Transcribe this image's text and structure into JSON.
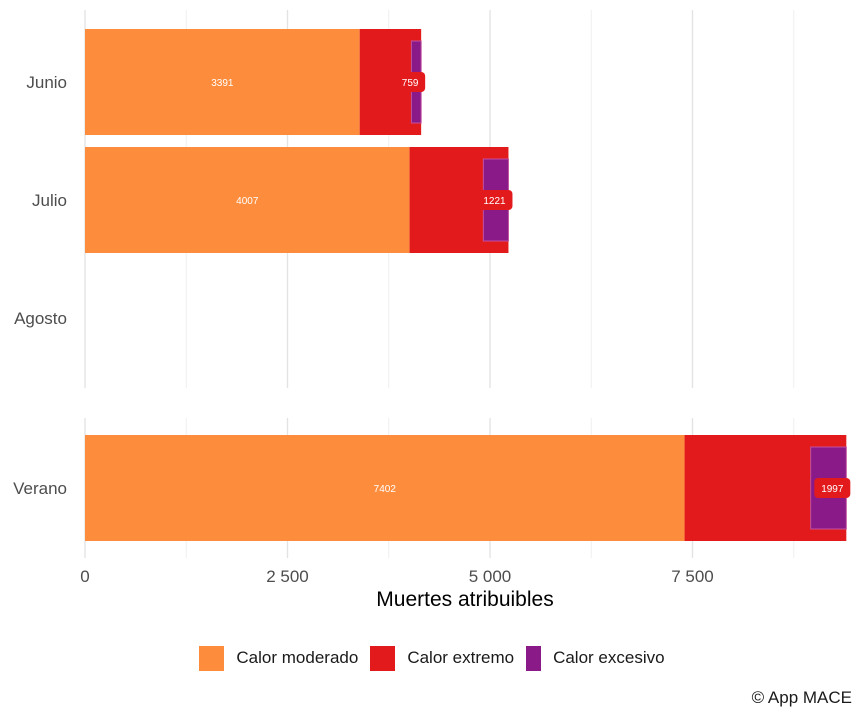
{
  "chart_data": {
    "type": "bar",
    "orientation": "horizontal",
    "stacked": true,
    "title": "",
    "xlabel": "Muertes atribuibles",
    "ylabel": "",
    "xlim": [
      0,
      9400
    ],
    "x_ticks": [
      0,
      2500,
      5000,
      7500
    ],
    "x_tick_labels": [
      "0",
      "2 500",
      "5 000",
      "7 500"
    ],
    "grid": true,
    "legend_position": "bottom",
    "panels": [
      {
        "name": "months",
        "categories": [
          "Junio",
          "Julio",
          "Agosto"
        ]
      },
      {
        "name": "summer",
        "categories": [
          "Verano"
        ]
      }
    ],
    "categories": [
      "Junio",
      "Julio",
      "Agosto",
      "Verano"
    ],
    "series": [
      {
        "name": "Calor moderado",
        "color": "#fd8d3c",
        "values": [
          3391,
          4007,
          null,
          7402
        ],
        "labels": [
          "3391",
          "4007",
          null,
          "7402"
        ]
      },
      {
        "name": "Calor extremo",
        "color": "#e31a1c",
        "values": [
          759,
          1221,
          null,
          1997
        ],
        "labels": [
          "759",
          "1221",
          null,
          "1997"
        ]
      }
    ],
    "overlay": {
      "name": "Calor excesivo",
      "color": "#8b1a89",
      "note": "subset drawn at end of Calor extremo segment",
      "values": [
        120,
        310,
        null,
        440
      ]
    },
    "caption": "© App MACE"
  }
}
